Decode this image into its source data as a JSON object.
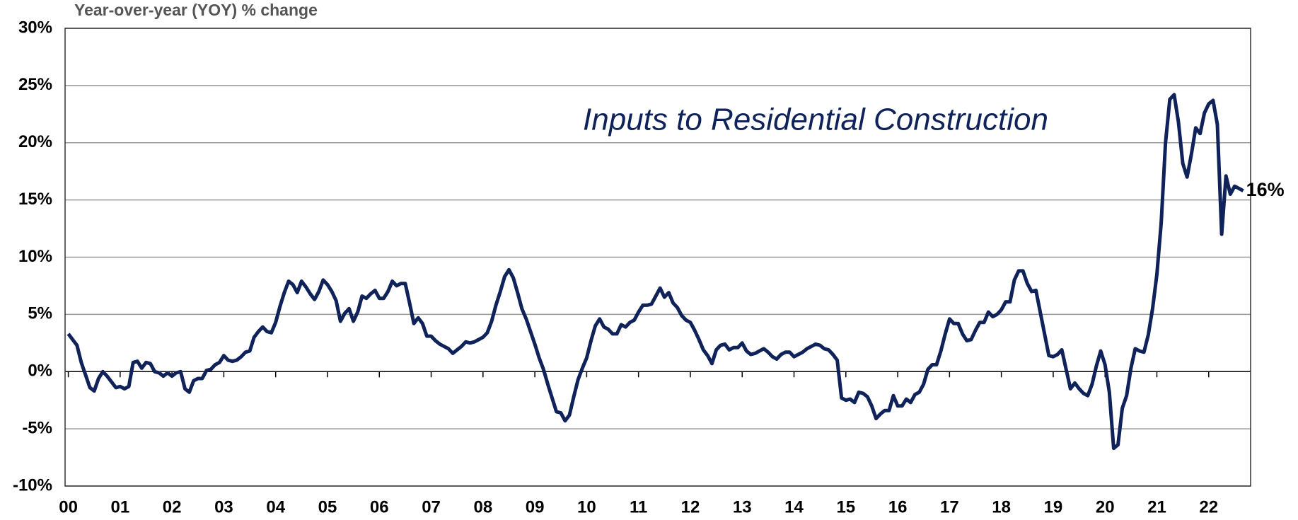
{
  "chart_data": {
    "type": "line",
    "y_axis_label": "Year-over-year (YOY) % change",
    "xlim": [
      -0.75,
      273.7
    ],
    "xticks": [
      {
        "value": 0,
        "label": "00"
      },
      {
        "value": 12,
        "label": "01"
      },
      {
        "value": 24,
        "label": "02"
      },
      {
        "value": 36,
        "label": "03"
      },
      {
        "value": 48,
        "label": "04"
      },
      {
        "value": 60,
        "label": "05"
      },
      {
        "value": 72,
        "label": "06"
      },
      {
        "value": 84,
        "label": "07"
      },
      {
        "value": 96,
        "label": "08"
      },
      {
        "value": 108,
        "label": "09"
      },
      {
        "value": 120,
        "label": "10"
      },
      {
        "value": 132,
        "label": "11"
      },
      {
        "value": 144,
        "label": "12"
      },
      {
        "value": 156,
        "label": "13"
      },
      {
        "value": 168,
        "label": "14"
      },
      {
        "value": 180,
        "label": "15"
      },
      {
        "value": 192,
        "label": "16"
      },
      {
        "value": 204,
        "label": "17"
      },
      {
        "value": 216,
        "label": "18"
      },
      {
        "value": 228,
        "label": "19"
      },
      {
        "value": 240,
        "label": "20"
      },
      {
        "value": 252,
        "label": "21"
      },
      {
        "value": 264,
        "label": "22"
      }
    ],
    "ylim": [
      -10,
      30
    ],
    "yticks": [
      {
        "value": -10,
        "label": "-10%"
      },
      {
        "value": -5,
        "label": "-5%"
      },
      {
        "value": 0,
        "label": "0%"
      },
      {
        "value": 5,
        "label": "5%"
      },
      {
        "value": 10,
        "label": "10%"
      },
      {
        "value": 15,
        "label": "15%"
      },
      {
        "value": 20,
        "label": "20%"
      },
      {
        "value": 25,
        "label": "25%"
      },
      {
        "value": 30,
        "label": "30%"
      }
    ],
    "grid": true,
    "end_label": "16%",
    "series": [
      {
        "name": "Inputs to Residential Construction",
        "color": "#0f2259",
        "values": [
          3.3,
          2.8,
          2.3,
          0.8,
          -0.3,
          -1.4,
          -1.7,
          -0.6,
          0.0,
          -0.4,
          -0.9,
          -1.4,
          -1.3,
          -1.5,
          -1.3,
          0.8,
          0.9,
          0.3,
          0.8,
          0.7,
          0.0,
          -0.1,
          -0.4,
          -0.1,
          -0.4,
          -0.1,
          0.0,
          -1.5,
          -1.8,
          -0.8,
          -0.6,
          -0.6,
          0.1,
          0.2,
          0.6,
          0.8,
          1.4,
          1.0,
          0.9,
          1.0,
          1.3,
          1.7,
          1.8,
          3.0,
          3.5,
          3.9,
          3.5,
          3.4,
          4.3,
          5.7,
          6.9,
          7.9,
          7.6,
          6.9,
          7.9,
          7.4,
          6.8,
          6.3,
          7.0,
          8.0,
          7.6,
          7.0,
          6.2,
          4.4,
          5.1,
          5.5,
          4.4,
          5.2,
          6.6,
          6.4,
          6.8,
          7.1,
          6.4,
          6.4,
          7.0,
          7.9,
          7.5,
          7.7,
          7.7,
          6.0,
          4.2,
          4.7,
          4.2,
          3.1,
          3.1,
          2.7,
          2.4,
          2.2,
          2.0,
          1.6,
          1.9,
          2.2,
          2.6,
          2.5,
          2.6,
          2.8,
          3.0,
          3.4,
          4.4,
          5.8,
          7.0,
          8.3,
          8.9,
          8.2,
          6.9,
          5.5,
          4.6,
          3.5,
          2.4,
          1.2,
          0.2,
          -1.1,
          -2.3,
          -3.5,
          -3.6,
          -4.3,
          -3.8,
          -2.2,
          -0.7,
          0.3,
          1.2,
          2.7,
          4.0,
          4.6,
          3.9,
          3.7,
          3.3,
          3.3,
          4.1,
          3.9,
          4.3,
          4.5,
          5.2,
          5.8,
          5.8,
          5.9,
          6.6,
          7.3,
          6.5,
          6.9,
          6.0,
          5.6,
          4.9,
          4.5,
          4.3,
          3.6,
          2.8,
          1.9,
          1.4,
          0.7,
          1.9,
          2.3,
          2.4,
          1.9,
          2.1,
          2.1,
          2.5,
          1.8,
          1.5,
          1.6,
          1.8,
          2.0,
          1.7,
          1.3,
          1.1,
          1.5,
          1.7,
          1.7,
          1.3,
          1.5,
          1.7,
          2.0,
          2.2,
          2.4,
          2.3,
          2.0,
          1.9,
          1.5,
          1.0,
          -2.3,
          -2.5,
          -2.4,
          -2.7,
          -1.8,
          -1.9,
          -2.2,
          -3.0,
          -4.1,
          -3.7,
          -3.4,
          -3.4,
          -2.1,
          -3.0,
          -3.0,
          -2.4,
          -2.7,
          -2.0,
          -1.8,
          -1.1,
          0.2,
          0.6,
          0.6,
          1.8,
          3.3,
          4.6,
          4.2,
          4.2,
          3.3,
          2.7,
          2.8,
          3.6,
          4.3,
          4.3,
          5.2,
          4.8,
          5.0,
          5.4,
          6.1,
          6.1,
          8.0,
          8.8,
          8.8,
          7.7,
          7.0,
          7.1,
          5.2,
          3.3,
          1.4,
          1.3,
          1.5,
          1.9,
          0.2,
          -1.5,
          -1.0,
          -1.5,
          -1.9,
          -2.1,
          -1.1,
          0.5,
          1.8,
          0.6,
          -1.8,
          -6.7,
          -6.4,
          -3.2,
          -2.1,
          0.3,
          2.0,
          1.8,
          1.7,
          3.2,
          5.5,
          8.5,
          13.0,
          20.0,
          23.8,
          24.2,
          21.8,
          18.2,
          17.0,
          19.0,
          21.3,
          20.8,
          22.6,
          23.4,
          23.7,
          21.6,
          12.0,
          17.1,
          15.5,
          16.2,
          16.0,
          15.8
        ]
      }
    ]
  }
}
